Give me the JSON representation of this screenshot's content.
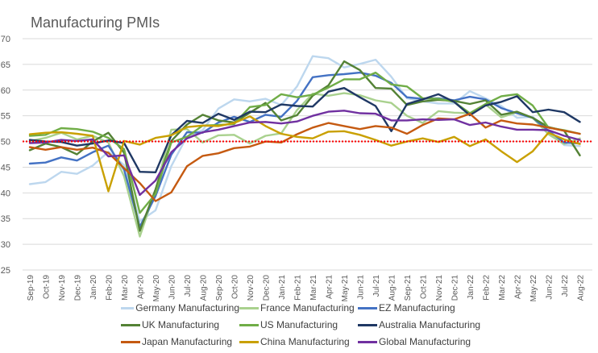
{
  "chart_data": {
    "type": "line",
    "title": "Manufacturing PMIs",
    "xlabel": "",
    "ylabel": "",
    "ylim": [
      25,
      70
    ],
    "yticks": [
      25,
      30,
      35,
      40,
      45,
      50,
      55,
      60,
      65,
      70
    ],
    "grid": true,
    "legend_position": "bottom",
    "reference_line": {
      "value": 50,
      "color": "#ff0000",
      "style": "dotted"
    },
    "categories": [
      "Sep-19",
      "Oct-19",
      "Nov-19",
      "Dec-19",
      "Jan-20",
      "Feb-20",
      "Mar-20",
      "Apr-20",
      "May-20",
      "Jun-20",
      "Jul-20",
      "Aug-20",
      "Sep-20",
      "Oct-20",
      "Nov-20",
      "Dec-20",
      "Jan-21",
      "Feb-21",
      "Mar-21",
      "Apr-21",
      "May-21",
      "Jun-21",
      "Jul-21",
      "Aug-21",
      "Sep-21",
      "Oct-21",
      "Nov-21",
      "Dec-21",
      "Jan-22",
      "Feb-22",
      "Mar-22",
      "Apr-22",
      "May-22",
      "Jun-22",
      "Jul-22",
      "Aug-22"
    ],
    "series": [
      {
        "name": "Germany Manufacturing",
        "color": "#bdd7ee",
        "values": [
          41.7,
          42.1,
          44.1,
          43.7,
          45.3,
          48.0,
          45.4,
          34.5,
          36.6,
          45.2,
          51.0,
          52.2,
          56.4,
          58.2,
          57.8,
          58.3,
          57.1,
          60.7,
          66.6,
          66.2,
          64.4,
          65.1,
          65.9,
          62.6,
          58.4,
          57.8,
          57.4,
          57.4,
          59.8,
          58.4,
          56.9,
          54.6,
          54.8,
          52.0,
          49.3,
          49.1
        ]
      },
      {
        "name": "France Manufacturing",
        "color": "#a9d18e",
        "values": [
          50.1,
          50.7,
          51.7,
          50.4,
          51.1,
          49.8,
          43.2,
          31.5,
          40.6,
          52.3,
          52.4,
          49.8,
          51.2,
          51.3,
          49.6,
          51.1,
          51.6,
          56.1,
          59.3,
          58.9,
          59.4,
          59.0,
          58.0,
          57.5,
          55.0,
          53.6,
          55.9,
          55.6,
          55.5,
          57.2,
          54.7,
          55.7,
          54.6,
          51.4,
          49.5,
          50.6
        ]
      },
      {
        "name": "EZ Manufacturing",
        "color": "#4472c4",
        "values": [
          45.7,
          45.9,
          46.9,
          46.3,
          47.9,
          49.2,
          44.5,
          33.4,
          39.4,
          47.4,
          51.8,
          51.7,
          53.7,
          54.8,
          53.8,
          55.2,
          54.8,
          57.9,
          62.5,
          62.9,
          63.1,
          63.4,
          62.8,
          61.4,
          58.6,
          58.3,
          58.4,
          58.0,
          58.7,
          58.2,
          56.5,
          55.5,
          54.6,
          52.1,
          49.8,
          49.6
        ]
      },
      {
        "name": "UK Manufacturing",
        "color": "#548235",
        "values": [
          48.3,
          49.6,
          48.9,
          47.5,
          50.0,
          51.7,
          47.8,
          32.6,
          40.7,
          50.1,
          53.3,
          55.2,
          54.1,
          53.7,
          55.6,
          57.5,
          54.1,
          55.1,
          58.9,
          60.9,
          65.6,
          63.9,
          60.4,
          60.3,
          57.1,
          57.8,
          58.1,
          57.9,
          57.3,
          58.0,
          55.2,
          55.8,
          54.6,
          52.8,
          52.1,
          47.3
        ]
      },
      {
        "name": "US Manufacturing",
        "color": "#70ad47",
        "values": [
          51.1,
          51.3,
          52.6,
          52.4,
          51.9,
          50.7,
          48.5,
          36.1,
          39.8,
          49.8,
          50.9,
          53.1,
          53.2,
          53.4,
          56.7,
          57.1,
          59.2,
          58.6,
          59.1,
          60.5,
          62.1,
          62.1,
          63.4,
          61.1,
          60.7,
          58.4,
          58.3,
          57.7,
          55.5,
          57.3,
          58.8,
          59.2,
          57.0,
          52.7,
          52.2,
          51.5
        ]
      },
      {
        "name": "Australia Manufacturing",
        "color": "#1f3864",
        "values": [
          50.3,
          50.0,
          49.9,
          49.2,
          49.6,
          50.2,
          49.7,
          44.1,
          44.0,
          51.2,
          54.0,
          53.6,
          55.4,
          54.2,
          55.8,
          55.7,
          57.2,
          56.9,
          56.8,
          59.7,
          60.4,
          58.6,
          56.9,
          52.0,
          57.3,
          58.2,
          59.2,
          57.7,
          55.1,
          57.0,
          57.7,
          58.8,
          55.7,
          56.2,
          55.7,
          53.8
        ]
      },
      {
        "name": "Japan Manufacturing",
        "color": "#c55a11",
        "values": [
          48.9,
          48.4,
          48.9,
          48.4,
          48.8,
          47.8,
          44.8,
          41.9,
          38.4,
          40.1,
          45.2,
          47.2,
          47.7,
          48.7,
          49.0,
          50.0,
          49.8,
          51.4,
          52.7,
          53.6,
          53.0,
          52.4,
          53.0,
          52.7,
          51.5,
          53.2,
          54.5,
          54.3,
          55.4,
          52.7,
          54.1,
          53.5,
          53.3,
          52.7,
          52.1,
          51.5
        ]
      },
      {
        "name": "China Manufacturing",
        "color": "#c9a000",
        "values": [
          51.4,
          51.7,
          51.8,
          51.5,
          51.1,
          40.3,
          50.1,
          49.4,
          50.7,
          51.2,
          52.8,
          53.1,
          53.0,
          53.6,
          54.9,
          53.0,
          51.5,
          50.9,
          50.6,
          51.9,
          52.0,
          51.3,
          50.3,
          49.2,
          50.0,
          50.6,
          49.9,
          50.9,
          49.1,
          50.4,
          48.1,
          46.0,
          48.1,
          51.7,
          50.4,
          49.5
        ]
      },
      {
        "name": "Global Manufacturing",
        "color": "#7030a0",
        "values": [
          49.7,
          49.8,
          50.3,
          50.1,
          50.4,
          47.1,
          47.3,
          39.6,
          42.4,
          47.9,
          50.6,
          51.8,
          52.3,
          53.0,
          53.7,
          53.8,
          53.5,
          53.9,
          55.0,
          55.8,
          56.0,
          55.5,
          55.4,
          54.1,
          54.1,
          54.3,
          54.2,
          54.3,
          53.2,
          53.7,
          52.9,
          52.3,
          52.3,
          52.2,
          51.1,
          50.3
        ]
      }
    ]
  }
}
